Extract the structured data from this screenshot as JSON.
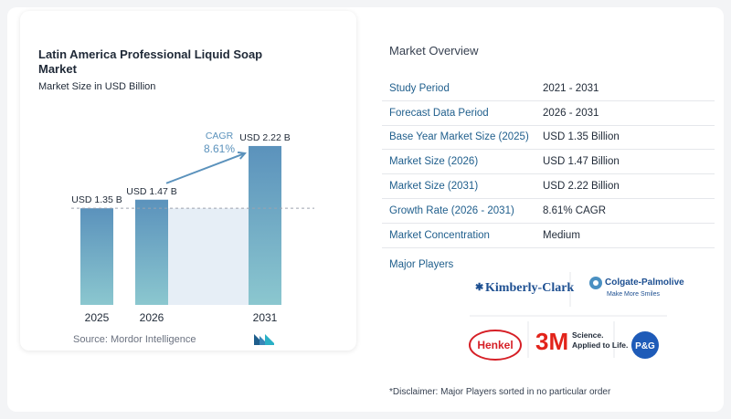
{
  "chart_data": {
    "type": "bar",
    "title": "Latin America Professional Liquid Soap Market",
    "subtitle": "Market Size in USD Billion",
    "categories": [
      "2025",
      "2026",
      "2031"
    ],
    "values": [
      1.35,
      1.47,
      2.22
    ],
    "value_labels": [
      "USD 1.35 B",
      "USD 1.47 B",
      "USD 2.22 B"
    ],
    "cagr_label": "CAGR",
    "cagr_value": "8.61%",
    "ylim": [
      0,
      2.5
    ],
    "grid": false,
    "colors": {
      "bar_top": "#5b92bc",
      "bar_bottom": "#8bc7cf",
      "shade": "#e6eef6",
      "arrow": "#5b92bc",
      "cagr_text": "#5b92bc"
    }
  },
  "source": "Source:  Mordor Intelligence",
  "overview": {
    "title": "Market Overview",
    "rows": [
      {
        "key": "Study Period",
        "value": "2021 - 2031"
      },
      {
        "key": "Forecast Data Period",
        "value": "2026 - 2031"
      },
      {
        "key": "Base Year Market Size (2025)",
        "value": "USD 1.35 Billion"
      },
      {
        "key": "Market Size (2026)",
        "value": "USD 1.47 Billion"
      },
      {
        "key": "Market Size (2031)",
        "value": "USD 2.22 Billion"
      },
      {
        "key": "Growth Rate (2026 - 2031)",
        "value": "8.61% CAGR"
      },
      {
        "key": "Market Concentration",
        "value": "Medium"
      }
    ]
  },
  "players": {
    "title": "Major Players",
    "kimberly_clark": "Kimberly-Clark",
    "colgate": "Colgate-Palmolive",
    "colgate_tagline": "Make More Smiles",
    "henkel": "Henkel",
    "three_m": "3M",
    "three_m_tagline_1": "Science.",
    "three_m_tagline_2": "Applied to Life.",
    "pg": "P&G"
  },
  "disclaimer": "*Disclaimer: Major Players sorted in no particular order"
}
